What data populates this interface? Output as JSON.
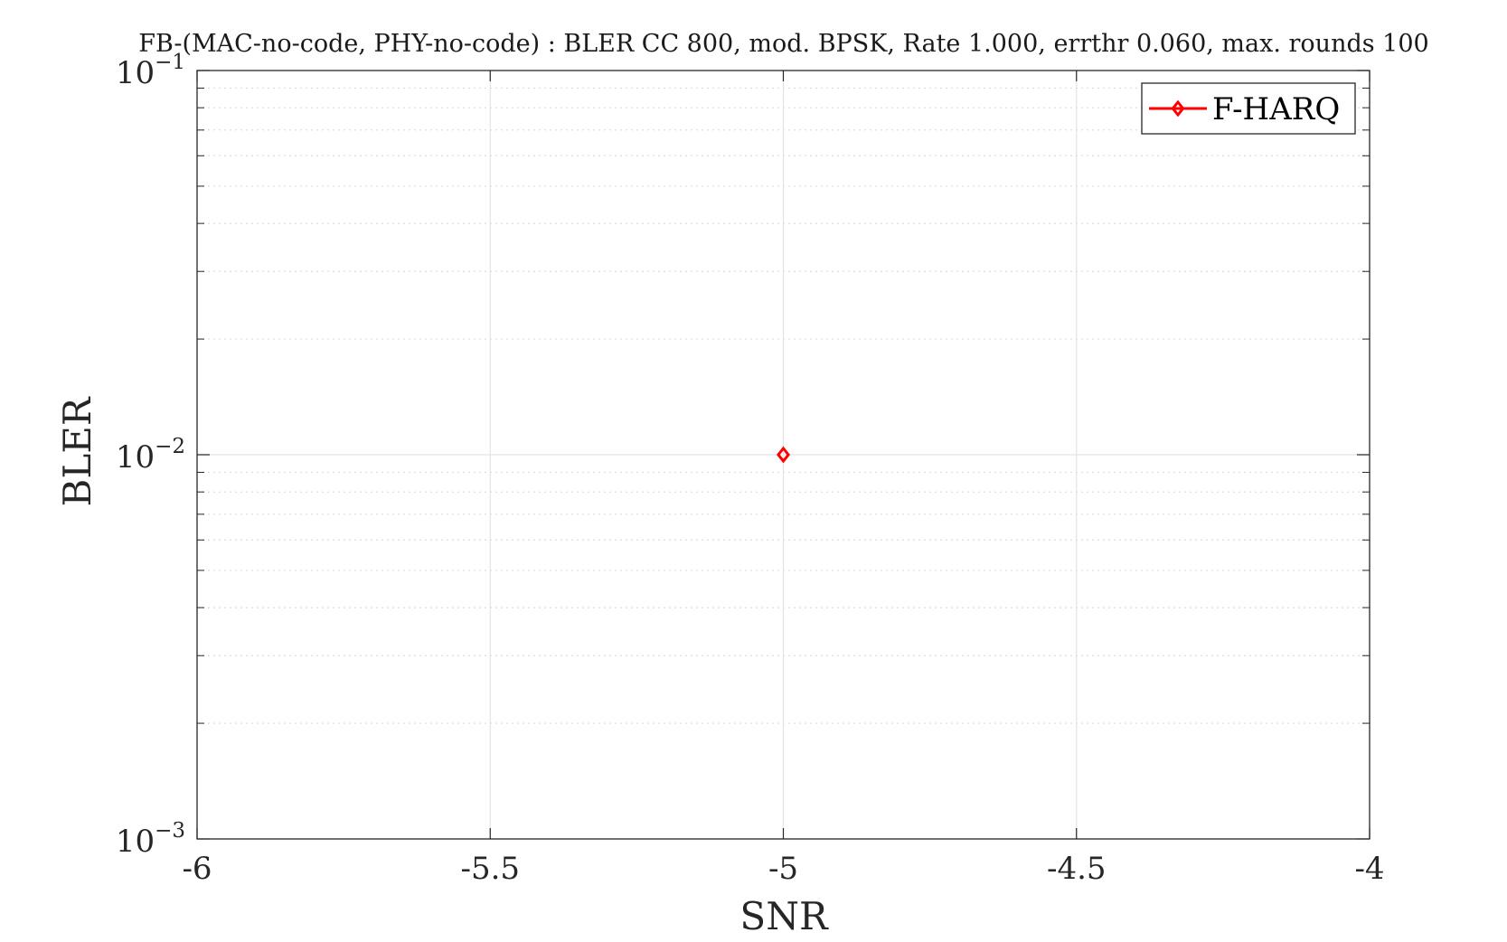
{
  "chart_data": {
    "type": "line",
    "title": "FB-(MAC-no-code, PHY-no-code) : BLER CC 800, mod. BPSK, Rate 1.000, errthr 0.060, max. rounds 100",
    "xlabel": "SNR",
    "ylabel": "BLER",
    "xlim": [
      -6,
      -4
    ],
    "ylim": [
      0.001,
      0.1
    ],
    "yscale": "log",
    "grid": true,
    "minor_grid": true,
    "legend_position": "top-right",
    "x_ticks": [
      {
        "value": -6,
        "label": "-6"
      },
      {
        "value": -5.5,
        "label": "-5.5"
      },
      {
        "value": -5,
        "label": "-5"
      },
      {
        "value": -4.5,
        "label": "-4.5"
      },
      {
        "value": -4,
        "label": "-4"
      }
    ],
    "y_ticks": [
      {
        "value": 0.1,
        "base": "10",
        "exp": "−1"
      },
      {
        "value": 0.01,
        "base": "10",
        "exp": "−2"
      },
      {
        "value": 0.001,
        "base": "10",
        "exp": "−3"
      }
    ],
    "series": [
      {
        "name": "F-HARQ",
        "color": "#ff0000",
        "marker": "diamond",
        "x": [
          -5
        ],
        "y": [
          0.01
        ]
      }
    ]
  }
}
